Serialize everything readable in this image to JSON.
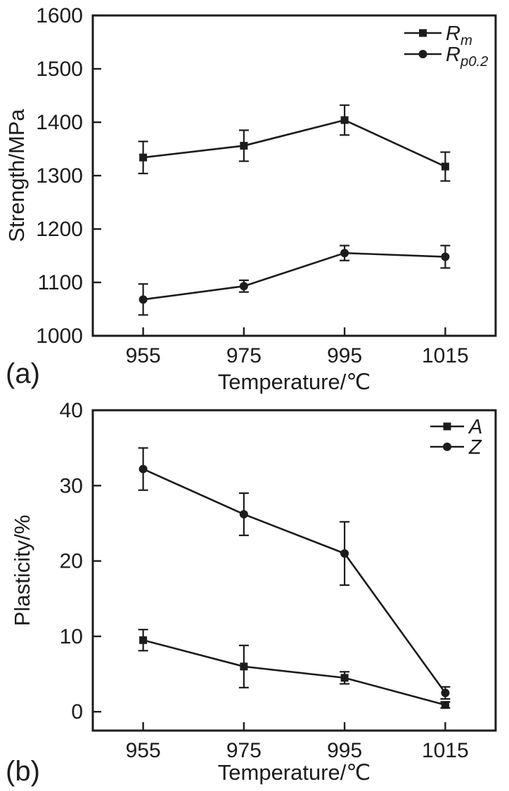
{
  "figure": {
    "panel_a_tag": "(a)",
    "panel_b_tag": "(b)"
  },
  "chart_data": [
    {
      "type": "line",
      "tag": "(a)",
      "title": "",
      "xlabel": "Temperature/℃",
      "ylabel": "Strength/MPa",
      "x": [
        955,
        975,
        995,
        1015
      ],
      "categories": [
        "955",
        "975",
        "995",
        "1015"
      ],
      "ylim": [
        1000,
        1600
      ],
      "yticks": [
        1000,
        1100,
        1200,
        1300,
        1400,
        1500,
        1600
      ],
      "grid": false,
      "legend_position": "top-right",
      "color": "#1c1c1c",
      "series": [
        {
          "name": "Rm",
          "label_main": "R",
          "label_sub": "m",
          "marker": "square",
          "values": [
            1334,
            1356,
            1404,
            1317
          ],
          "errors": [
            30,
            29,
            28,
            27
          ]
        },
        {
          "name": "Rp0.2",
          "label_main": "R",
          "label_sub": "p0.2",
          "marker": "circle",
          "values": [
            1068,
            1093,
            1155,
            1148
          ],
          "errors": [
            29,
            11,
            14,
            21
          ]
        }
      ]
    },
    {
      "type": "line",
      "tag": "(b)",
      "title": "",
      "xlabel": "Temperature/℃",
      "ylabel": "Plasticity/%",
      "x": [
        955,
        975,
        995,
        1015
      ],
      "categories": [
        "955",
        "975",
        "995",
        "1015"
      ],
      "ylim": [
        -2.5,
        40
      ],
      "yticks": [
        0,
        10,
        20,
        30,
        40
      ],
      "grid": false,
      "legend_position": "top-right",
      "color": "#1c1c1c",
      "series": [
        {
          "name": "A",
          "label_main": "A",
          "label_sub": "",
          "marker": "square",
          "values": [
            9.5,
            6.0,
            4.5,
            0.9
          ],
          "errors": [
            1.4,
            2.8,
            0.8,
            0.4
          ]
        },
        {
          "name": "Z",
          "label_main": "Z",
          "label_sub": "",
          "marker": "circle",
          "values": [
            32.2,
            26.2,
            21.0,
            2.5
          ],
          "errors": [
            2.8,
            2.8,
            4.2,
            0.8
          ]
        }
      ]
    }
  ]
}
